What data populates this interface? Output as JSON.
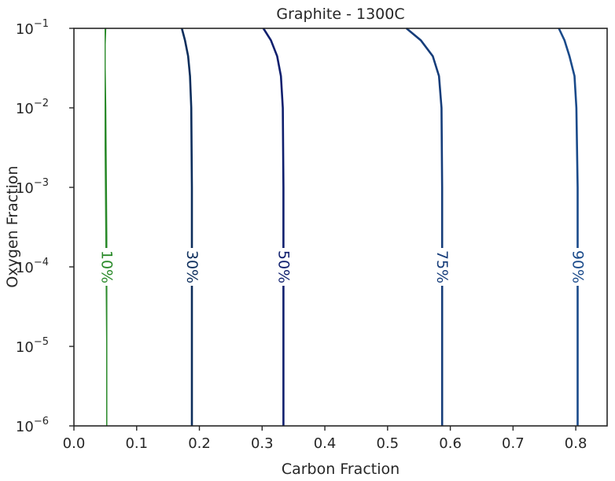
{
  "chart_data": {
    "type": "line",
    "title": "Graphite - 1300C",
    "xlabel": "Carbon Fraction",
    "ylabel": "Oxygen Fraction",
    "xlim": [
      0.0,
      0.85
    ],
    "ylim_log10": [
      -6,
      -1
    ],
    "yscale": "log",
    "grid": false,
    "x_ticks": [
      "0.0",
      "0.1",
      "0.2",
      "0.3",
      "0.4",
      "0.5",
      "0.6",
      "0.7",
      "0.8"
    ],
    "y_ticks": [
      {
        "base": "10",
        "exp": "−6"
      },
      {
        "base": "10",
        "exp": "−5"
      },
      {
        "base": "10",
        "exp": "−4"
      },
      {
        "base": "10",
        "exp": "−3"
      },
      {
        "base": "10",
        "exp": "−2"
      },
      {
        "base": "10",
        "exp": "−1"
      }
    ],
    "series": [
      {
        "name": "10%",
        "color": "#2a8a2a",
        "label_y_log10": -4.0,
        "points": [
          [
            0.053,
            -6
          ],
          [
            0.053,
            -5
          ],
          [
            0.052,
            -4
          ],
          [
            0.051,
            -3
          ],
          [
            0.05,
            -2
          ],
          [
            0.049,
            -1.5
          ],
          [
            0.049,
            -1.2
          ],
          [
            0.05,
            -1
          ]
        ]
      },
      {
        "name": "30%",
        "color": "#0d2e5c",
        "label_y_log10": -4.0,
        "points": [
          [
            0.188,
            -6
          ],
          [
            0.188,
            -4
          ],
          [
            0.188,
            -3
          ],
          [
            0.187,
            -2
          ],
          [
            0.185,
            -1.6
          ],
          [
            0.182,
            -1.35
          ],
          [
            0.177,
            -1.15
          ],
          [
            0.172,
            -1
          ]
        ]
      },
      {
        "name": "50%",
        "color": "#0f1f6e",
        "label_y_log10": -4.0,
        "points": [
          [
            0.334,
            -6
          ],
          [
            0.334,
            -4
          ],
          [
            0.334,
            -3
          ],
          [
            0.333,
            -2
          ],
          [
            0.33,
            -1.6
          ],
          [
            0.324,
            -1.35
          ],
          [
            0.314,
            -1.15
          ],
          [
            0.302,
            -1
          ]
        ]
      },
      {
        "name": "75%",
        "color": "#163d7a",
        "label_y_log10": -4.0,
        "points": [
          [
            0.587,
            -6
          ],
          [
            0.587,
            -4
          ],
          [
            0.587,
            -3
          ],
          [
            0.586,
            -2
          ],
          [
            0.582,
            -1.6
          ],
          [
            0.572,
            -1.35
          ],
          [
            0.553,
            -1.15
          ],
          [
            0.53,
            -1
          ]
        ]
      },
      {
        "name": "90%",
        "color": "#1a4a8a",
        "label_y_log10": -4.0,
        "points": [
          [
            0.803,
            -6
          ],
          [
            0.803,
            -4
          ],
          [
            0.803,
            -3
          ],
          [
            0.801,
            -2
          ],
          [
            0.798,
            -1.6
          ],
          [
            0.79,
            -1.35
          ],
          [
            0.782,
            -1.15
          ],
          [
            0.773,
            -1
          ]
        ]
      }
    ]
  }
}
